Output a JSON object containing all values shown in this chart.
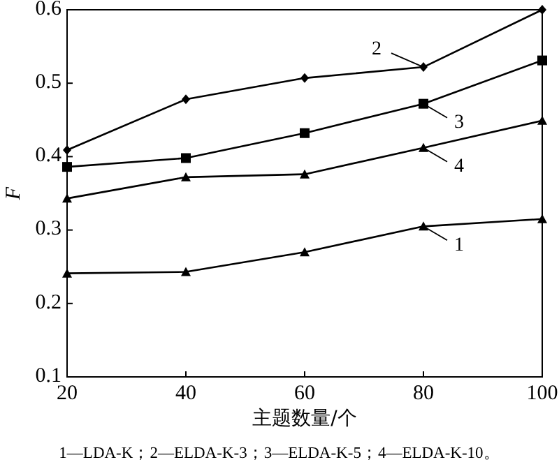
{
  "chart_data": {
    "type": "line",
    "xlabel": "主题数量/个",
    "ylabel": "F",
    "x": [
      20,
      40,
      60,
      80,
      100
    ],
    "series": [
      {
        "name": "1",
        "color": "#000000",
        "marker": "triangle",
        "values": [
          0.241,
          0.243,
          0.27,
          0.305,
          0.315
        ]
      },
      {
        "name": "2",
        "color": "#000000",
        "marker": "diamond",
        "values": [
          0.409,
          0.478,
          0.507,
          0.522,
          0.6
        ]
      },
      {
        "name": "3",
        "color": "#000000",
        "marker": "square",
        "values": [
          0.386,
          0.398,
          0.432,
          0.472,
          0.531
        ]
      },
      {
        "name": "4",
        "color": "#000000",
        "marker": "triangle",
        "values": [
          0.343,
          0.372,
          0.376,
          0.412,
          0.449
        ]
      }
    ],
    "xlim": [
      20,
      100
    ],
    "xticks": [
      20,
      40,
      60,
      80,
      100
    ],
    "ylim": [
      0.1,
      0.6
    ],
    "yticks": [
      {
        "value": 0.1,
        "label": "0.1"
      },
      {
        "value": 0.2,
        "label": "0.2"
      },
      {
        "value": 0.3,
        "label": "0.3"
      },
      {
        "value": 0.4,
        "label": "0.4"
      },
      {
        "value": 0.5,
        "label": "0.5"
      },
      {
        "value": 0.6,
        "label": "0.6"
      }
    ],
    "grid": false,
    "legend": "right",
    "annotations": [
      "1—LDA-K；2—ELDA-K-3；3—ELDA-K-5；4—ELDA-K-10。"
    ]
  }
}
